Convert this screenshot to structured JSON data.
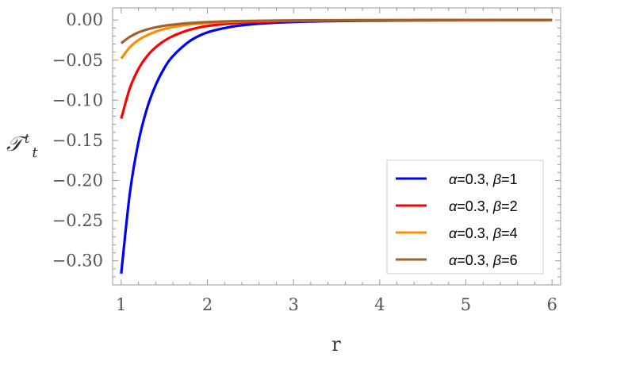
{
  "chart_data": {
    "type": "line",
    "xlabel": "r",
    "ylabel_main": "𝒯",
    "ylabel_sup": "t",
    "ylabel_sub": "t",
    "xlim": [
      0.9,
      6.1
    ],
    "ylim": [
      -0.33,
      0.015
    ],
    "x_ticks": [
      1,
      2,
      3,
      4,
      5,
      6
    ],
    "x_tick_labels": [
      "1",
      "2",
      "3",
      "4",
      "5",
      "6"
    ],
    "y_ticks": [
      0.0,
      -0.05,
      -0.1,
      -0.15,
      -0.2,
      -0.25,
      -0.3
    ],
    "y_tick_labels": [
      "0.00",
      "−0.05",
      "−0.10",
      "−0.15",
      "−0.20",
      "−0.25",
      "−0.30"
    ],
    "legend_position": "bottom-right",
    "grid": false,
    "series": [
      {
        "name": "α=0.3, β=1",
        "greek": "α",
        "eq1": "=0.3, ",
        "greek2": "β",
        "eq2": "=1",
        "color": "#0000ff",
        "x": [
          1,
          1.1,
          1.2,
          1.3,
          1.4,
          1.5,
          1.6,
          1.8,
          2.0,
          2.25,
          2.5,
          3.0,
          3.5,
          4.0,
          4.5,
          5.0,
          5.5,
          6.0
        ],
        "y": [
          -0.316,
          -0.216,
          -0.152,
          -0.11,
          -0.081,
          -0.06,
          -0.045,
          -0.026,
          -0.0155,
          -0.009,
          -0.0055,
          -0.0025,
          -0.0013,
          -0.0008,
          -0.0005,
          -0.0003,
          -0.0002,
          -0.0001
        ]
      },
      {
        "name": "α=0.3, β=2",
        "greek": "α",
        "eq1": "=0.3, ",
        "greek2": "β",
        "eq2": "=2",
        "color": "#ff0000",
        "x": [
          1,
          1.1,
          1.2,
          1.3,
          1.4,
          1.5,
          1.6,
          1.8,
          2.0,
          2.25,
          2.5,
          3.0,
          3.5,
          4.0,
          4.5,
          5.0,
          5.5,
          6.0
        ],
        "y": [
          -0.123,
          -0.085,
          -0.061,
          -0.045,
          -0.034,
          -0.026,
          -0.02,
          -0.012,
          -0.0075,
          -0.0045,
          -0.0028,
          -0.0013,
          -0.0007,
          -0.0004,
          -0.0003,
          -0.0002,
          -0.0001,
          -0.0001
        ]
      },
      {
        "name": "α=0.3, β=4",
        "greek": "α",
        "eq1": "=0.3, ",
        "greek2": "β",
        "eq2": "=4",
        "color": "#ff8c00",
        "x": [
          1,
          1.1,
          1.2,
          1.3,
          1.4,
          1.5,
          1.6,
          1.8,
          2.0,
          2.25,
          2.5,
          3.0,
          3.5,
          4.0,
          4.5,
          5.0,
          5.5,
          6.0
        ],
        "y": [
          -0.048,
          -0.034,
          -0.025,
          -0.019,
          -0.0145,
          -0.0112,
          -0.0088,
          -0.0056,
          -0.0037,
          -0.0023,
          -0.0015,
          -0.0007,
          -0.0004,
          -0.0002,
          -0.0001,
          -0.0001,
          0.0,
          0.0
        ]
      },
      {
        "name": "α=0.3, β=6",
        "greek": "α",
        "eq1": "=0.3, ",
        "greek2": "β",
        "eq2": "=6",
        "color": "#a0622d",
        "x": [
          1,
          1.1,
          1.2,
          1.3,
          1.4,
          1.5,
          1.6,
          1.8,
          2.0,
          2.25,
          2.5,
          3.0,
          3.5,
          4.0,
          4.5,
          5.0,
          5.5,
          6.0
        ],
        "y": [
          -0.029,
          -0.021,
          -0.0155,
          -0.0118,
          -0.0092,
          -0.0072,
          -0.0058,
          -0.0038,
          -0.0026,
          -0.0016,
          -0.0011,
          -0.0005,
          -0.0003,
          -0.0002,
          -0.0001,
          0.0,
          0.0,
          0.0
        ]
      }
    ]
  }
}
